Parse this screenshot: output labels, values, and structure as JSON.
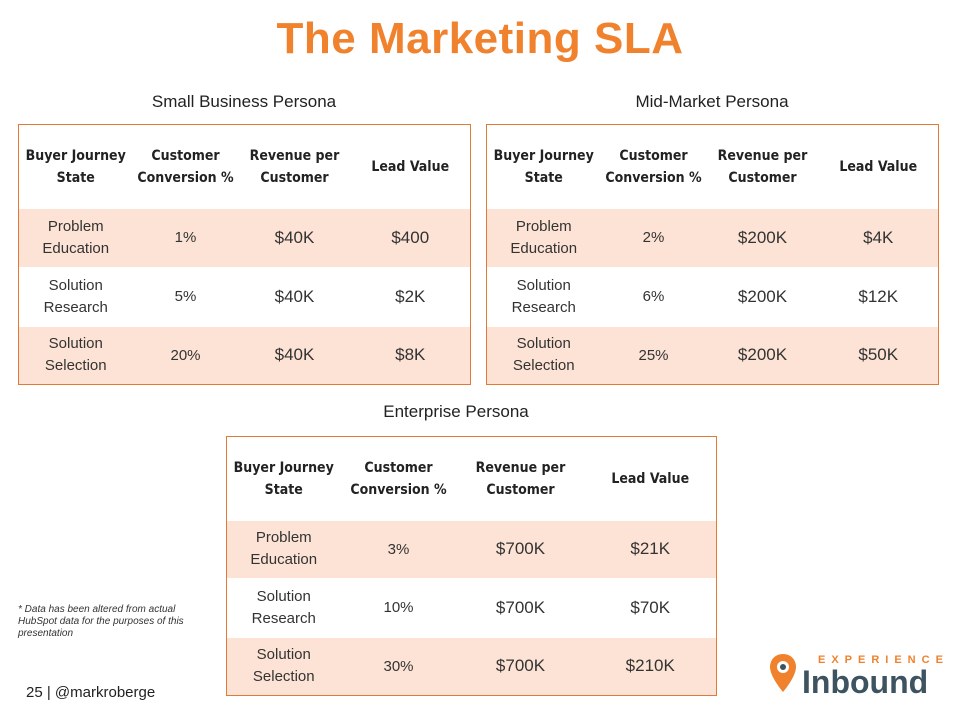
{
  "title": "The Marketing SLA",
  "headers": {
    "state": "Buyer Journey State",
    "conversion": "Customer Conversion %",
    "revenue": "Revenue per Customer",
    "lead": "Lead Value"
  },
  "states": [
    "Problem Education",
    "Solution Research",
    "Solution Selection"
  ],
  "small_business": {
    "heading": "Small Business Persona",
    "rows": [
      {
        "conversion": "1%",
        "revenue": "$40K",
        "lead": "$400"
      },
      {
        "conversion": "5%",
        "revenue": "$40K",
        "lead": "$2K"
      },
      {
        "conversion": "20%",
        "revenue": "$40K",
        "lead": "$8K"
      }
    ]
  },
  "mid_market": {
    "heading": "Mid-Market Persona",
    "rows": [
      {
        "conversion": "2%",
        "revenue": "$200K",
        "lead": "$4K"
      },
      {
        "conversion": "6%",
        "revenue": "$200K",
        "lead": "$12K"
      },
      {
        "conversion": "25%",
        "revenue": "$200K",
        "lead": "$50K"
      }
    ]
  },
  "enterprise": {
    "heading": "Enterprise Persona",
    "rows": [
      {
        "conversion": "3%",
        "revenue": "$700K",
        "lead": "$21K"
      },
      {
        "conversion": "10%",
        "revenue": "$700K",
        "lead": "$70K"
      },
      {
        "conversion": "30%",
        "revenue": "$700K",
        "lead": "$210K"
      }
    ]
  },
  "footnote": "* Data has been altered from actual HubSpot data for the purposes of this presentation",
  "footer": "25 | @markroberge",
  "logo": {
    "top": "EXPERIENCE",
    "main": "Inbound",
    "icon": "location-pin-icon"
  },
  "colors": {
    "accent": "#f0822e",
    "row_shade": "#fde3d5",
    "logo_text": "#3d5360"
  }
}
